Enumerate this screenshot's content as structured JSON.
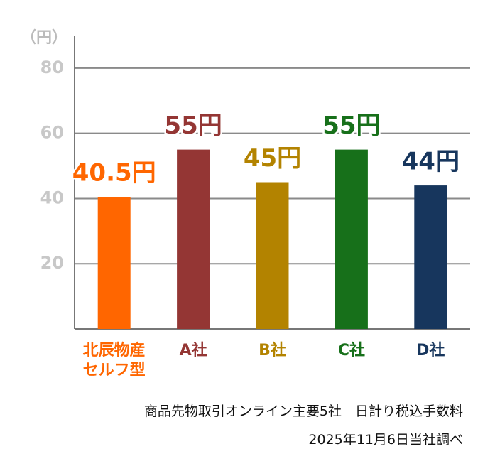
{
  "chart_data": {
    "type": "bar",
    "y_label": "（円）",
    "categories": [
      "北辰物産セルフ型",
      "A社",
      "B社",
      "C社",
      "D社"
    ],
    "values": [
      40.5,
      55,
      45,
      55,
      44
    ],
    "value_labels": [
      "40.5円",
      "55円",
      "45円",
      "55円",
      "44円"
    ],
    "colors": [
      "#ff6600",
      "#943634",
      "#b38300",
      "#17701a",
      "#17365d"
    ],
    "ylim": [
      0,
      90
    ],
    "yticks": [
      20,
      40,
      60,
      80
    ],
    "grid": true,
    "notes": [
      "商品先物取引オンライン主要5社　日計り税込手数料",
      "2025年11月6日当社調べ"
    ]
  }
}
